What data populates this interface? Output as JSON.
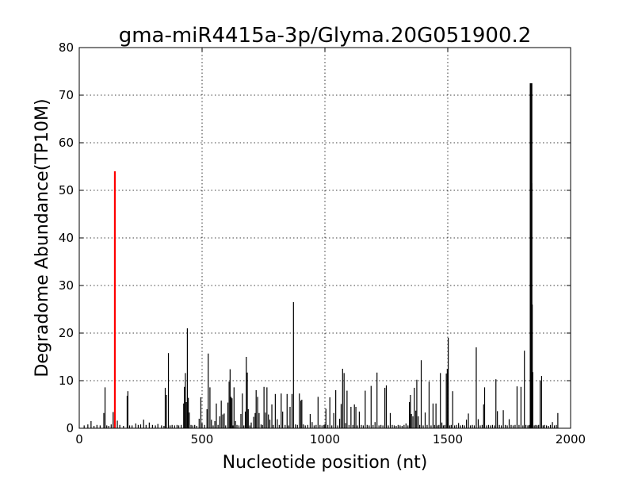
{
  "chart_data": {
    "type": "bar",
    "title": "gma-miR4415a-3p/Glyma.20G051900.2",
    "xlabel": "Nucleotide position (nt)",
    "ylabel": "Degradome Abundance(TP10M)",
    "xlim": [
      0,
      2000
    ],
    "ylim": [
      0,
      80
    ],
    "xticks": [
      0,
      500,
      1000,
      1500,
      2000
    ],
    "yticks": [
      0,
      10,
      20,
      30,
      40,
      50,
      60,
      70,
      80
    ],
    "grid": true,
    "series": [
      {
        "color": "#000000",
        "points": [
          [
            20,
            0.6
          ],
          [
            35,
            0.8
          ],
          [
            48,
            1.5
          ],
          [
            60,
            0.5
          ],
          [
            72,
            0.7
          ],
          [
            85,
            0.6
          ],
          [
            100,
            3.2
          ],
          [
            105,
            8.6
          ],
          [
            112,
            0.6
          ],
          [
            120,
            0.5
          ],
          [
            130,
            0.8
          ],
          [
            138,
            3.4
          ],
          [
            155,
            1.6
          ],
          [
            165,
            0.7
          ],
          [
            180,
            0.5
          ],
          [
            195,
            6.8
          ],
          [
            198,
            7.8
          ],
          [
            205,
            0.6
          ],
          [
            215,
            0.6
          ],
          [
            230,
            1.0
          ],
          [
            240,
            0.7
          ],
          [
            250,
            0.8
          ],
          [
            262,
            1.8
          ],
          [
            272,
            0.7
          ],
          [
            285,
            1.2
          ],
          [
            298,
            0.7
          ],
          [
            310,
            0.6
          ],
          [
            320,
            0.9
          ],
          [
            335,
            0.6
          ],
          [
            345,
            0.5
          ],
          [
            350,
            8.5
          ],
          [
            355,
            7.0
          ],
          [
            363,
            15.8
          ],
          [
            370,
            0.6
          ],
          [
            378,
            0.7
          ],
          [
            388,
            0.6
          ],
          [
            398,
            0.7
          ],
          [
            405,
            0.6
          ],
          [
            415,
            0.7
          ],
          [
            425,
            5.2
          ],
          [
            428,
            8.7
          ],
          [
            432,
            11.6
          ],
          [
            436,
            5.5
          ],
          [
            440,
            21.0
          ],
          [
            444,
            6.4
          ],
          [
            448,
            3.3
          ],
          [
            455,
            0.7
          ],
          [
            462,
            0.6
          ],
          [
            470,
            0.7
          ],
          [
            478,
            0.5
          ],
          [
            488,
            2.0
          ],
          [
            495,
            6.5
          ],
          [
            500,
            1.0
          ],
          [
            510,
            0.7
          ],
          [
            520,
            4.0
          ],
          [
            525,
            15.7
          ],
          [
            532,
            8.6
          ],
          [
            538,
            1.8
          ],
          [
            545,
            0.6
          ],
          [
            552,
            1.5
          ],
          [
            558,
            5.2
          ],
          [
            565,
            0.7
          ],
          [
            572,
            2.5
          ],
          [
            578,
            5.8
          ],
          [
            584,
            2.9
          ],
          [
            590,
            3.1
          ],
          [
            596,
            0.6
          ],
          [
            605,
            5.4
          ],
          [
            610,
            9.8
          ],
          [
            614,
            12.4
          ],
          [
            618,
            6.6
          ],
          [
            622,
            6.3
          ],
          [
            626,
            0.6
          ],
          [
            630,
            8.6
          ],
          [
            636,
            1.5
          ],
          [
            642,
            0.7
          ],
          [
            650,
            0.6
          ],
          [
            658,
            3.0
          ],
          [
            664,
            7.3
          ],
          [
            670,
            0.6
          ],
          [
            676,
            3.5
          ],
          [
            680,
            15.0
          ],
          [
            684,
            11.7
          ],
          [
            688,
            4.0
          ],
          [
            694,
            0.6
          ],
          [
            700,
            1.2
          ],
          [
            710,
            2.4
          ],
          [
            716,
            3.2
          ],
          [
            720,
            8.0
          ],
          [
            726,
            6.6
          ],
          [
            732,
            3.2
          ],
          [
            740,
            0.8
          ],
          [
            746,
            0.7
          ],
          [
            752,
            8.7
          ],
          [
            758,
            3.3
          ],
          [
            764,
            8.6
          ],
          [
            770,
            2.9
          ],
          [
            776,
            1.8
          ],
          [
            784,
            5.0
          ],
          [
            790,
            0.7
          ],
          [
            798,
            7.2
          ],
          [
            806,
            1.9
          ],
          [
            814,
            0.7
          ],
          [
            822,
            7.3
          ],
          [
            828,
            3.5
          ],
          [
            838,
            0.7
          ],
          [
            846,
            7.2
          ],
          [
            852,
            0.6
          ],
          [
            858,
            4.5
          ],
          [
            866,
            7.2
          ],
          [
            872,
            26.5
          ],
          [
            880,
            0.8
          ],
          [
            888,
            0.7
          ],
          [
            896,
            7.3
          ],
          [
            902,
            5.8
          ],
          [
            906,
            6.0
          ],
          [
            912,
            0.8
          ],
          [
            920,
            0.6
          ],
          [
            930,
            0.7
          ],
          [
            940,
            3.0
          ],
          [
            948,
            1.3
          ],
          [
            956,
            0.6
          ],
          [
            964,
            0.7
          ],
          [
            972,
            6.6
          ],
          [
            980,
            0.7
          ],
          [
            988,
            0.6
          ],
          [
            996,
            0.7
          ],
          [
            1004,
            4.1
          ],
          [
            1012,
            0.7
          ],
          [
            1020,
            6.5
          ],
          [
            1028,
            0.6
          ],
          [
            1036,
            3.2
          ],
          [
            1044,
            8.0
          ],
          [
            1052,
            0.6
          ],
          [
            1060,
            2.0
          ],
          [
            1066,
            5.1
          ],
          [
            1072,
            12.5
          ],
          [
            1078,
            11.6
          ],
          [
            1084,
            1.1
          ],
          [
            1090,
            7.9
          ],
          [
            1098,
            0.7
          ],
          [
            1106,
            4.5
          ],
          [
            1114,
            0.7
          ],
          [
            1120,
            5.0
          ],
          [
            1126,
            4.5
          ],
          [
            1132,
            0.6
          ],
          [
            1140,
            3.5
          ],
          [
            1148,
            0.7
          ],
          [
            1156,
            0.6
          ],
          [
            1164,
            7.9
          ],
          [
            1172,
            0.7
          ],
          [
            1180,
            0.6
          ],
          [
            1188,
            8.9
          ],
          [
            1196,
            0.7
          ],
          [
            1204,
            1.3
          ],
          [
            1212,
            11.7
          ],
          [
            1220,
            0.6
          ],
          [
            1228,
            0.7
          ],
          [
            1236,
            0.6
          ],
          [
            1244,
            8.5
          ],
          [
            1250,
            9.0
          ],
          [
            1258,
            0.6
          ],
          [
            1266,
            3.2
          ],
          [
            1274,
            0.7
          ],
          [
            1282,
            0.6
          ],
          [
            1290,
            0.5
          ],
          [
            1298,
            0.7
          ],
          [
            1306,
            0.6
          ],
          [
            1314,
            0.5
          ],
          [
            1322,
            0.7
          ],
          [
            1330,
            1.0
          ],
          [
            1338,
            0.6
          ],
          [
            1344,
            5.5
          ],
          [
            1348,
            7.0
          ],
          [
            1352,
            3.0
          ],
          [
            1358,
            2.5
          ],
          [
            1364,
            8.5
          ],
          [
            1370,
            3.7
          ],
          [
            1374,
            10.2
          ],
          [
            1380,
            2.5
          ],
          [
            1386,
            0.7
          ],
          [
            1392,
            14.3
          ],
          [
            1400,
            0.6
          ],
          [
            1408,
            3.3
          ],
          [
            1416,
            0.7
          ],
          [
            1424,
            9.8
          ],
          [
            1432,
            0.6
          ],
          [
            1440,
            5.2
          ],
          [
            1446,
            0.7
          ],
          [
            1452,
            5.2
          ],
          [
            1458,
            0.6
          ],
          [
            1464,
            0.7
          ],
          [
            1470,
            11.6
          ],
          [
            1476,
            1.2
          ],
          [
            1482,
            0.6
          ],
          [
            1488,
            0.7
          ],
          [
            1494,
            11.5
          ],
          [
            1498,
            12.5
          ],
          [
            1502,
            19.0
          ],
          [
            1508,
            0.6
          ],
          [
            1514,
            0.7
          ],
          [
            1520,
            7.8
          ],
          [
            1528,
            0.6
          ],
          [
            1536,
            0.7
          ],
          [
            1544,
            1.1
          ],
          [
            1552,
            0.6
          ],
          [
            1560,
            0.7
          ],
          [
            1568,
            0.6
          ],
          [
            1576,
            1.8
          ],
          [
            1584,
            3.1
          ],
          [
            1592,
            0.6
          ],
          [
            1600,
            0.7
          ],
          [
            1608,
            0.6
          ],
          [
            1616,
            17.0
          ],
          [
            1624,
            1.9
          ],
          [
            1632,
            0.6
          ],
          [
            1640,
            0.7
          ],
          [
            1646,
            5.0
          ],
          [
            1650,
            8.6
          ],
          [
            1658,
            0.6
          ],
          [
            1666,
            0.7
          ],
          [
            1674,
            0.6
          ],
          [
            1682,
            0.7
          ],
          [
            1690,
            0.6
          ],
          [
            1696,
            10.3
          ],
          [
            1702,
            3.6
          ],
          [
            1710,
            0.7
          ],
          [
            1718,
            0.6
          ],
          [
            1726,
            3.8
          ],
          [
            1734,
            0.7
          ],
          [
            1742,
            0.6
          ],
          [
            1750,
            1.9
          ],
          [
            1758,
            0.7
          ],
          [
            1766,
            0.6
          ],
          [
            1774,
            0.7
          ],
          [
            1782,
            8.8
          ],
          [
            1790,
            0.7
          ],
          [
            1798,
            8.7
          ],
          [
            1806,
            0.6
          ],
          [
            1812,
            16.3
          ],
          [
            1818,
            0.7
          ],
          [
            1826,
            0.6
          ],
          [
            1832,
            0.7
          ],
          [
            1838,
            72.5
          ],
          [
            1840,
            72.5
          ],
          [
            1842,
            51.5
          ],
          [
            1844,
            26.0
          ],
          [
            1846,
            11.8
          ],
          [
            1852,
            0.6
          ],
          [
            1858,
            0.7
          ],
          [
            1864,
            0.6
          ],
          [
            1870,
            0.7
          ],
          [
            1876,
            10.0
          ],
          [
            1882,
            11.0
          ],
          [
            1888,
            0.6
          ],
          [
            1894,
            0.7
          ],
          [
            1902,
            0.6
          ],
          [
            1910,
            0.5
          ],
          [
            1918,
            0.7
          ],
          [
            1926,
            1.3
          ],
          [
            1934,
            0.6
          ],
          [
            1942,
            0.7
          ],
          [
            1948,
            3.2
          ]
        ]
      },
      {
        "color": "#ff0000",
        "points": [
          [
            145,
            54.0
          ]
        ]
      }
    ]
  }
}
